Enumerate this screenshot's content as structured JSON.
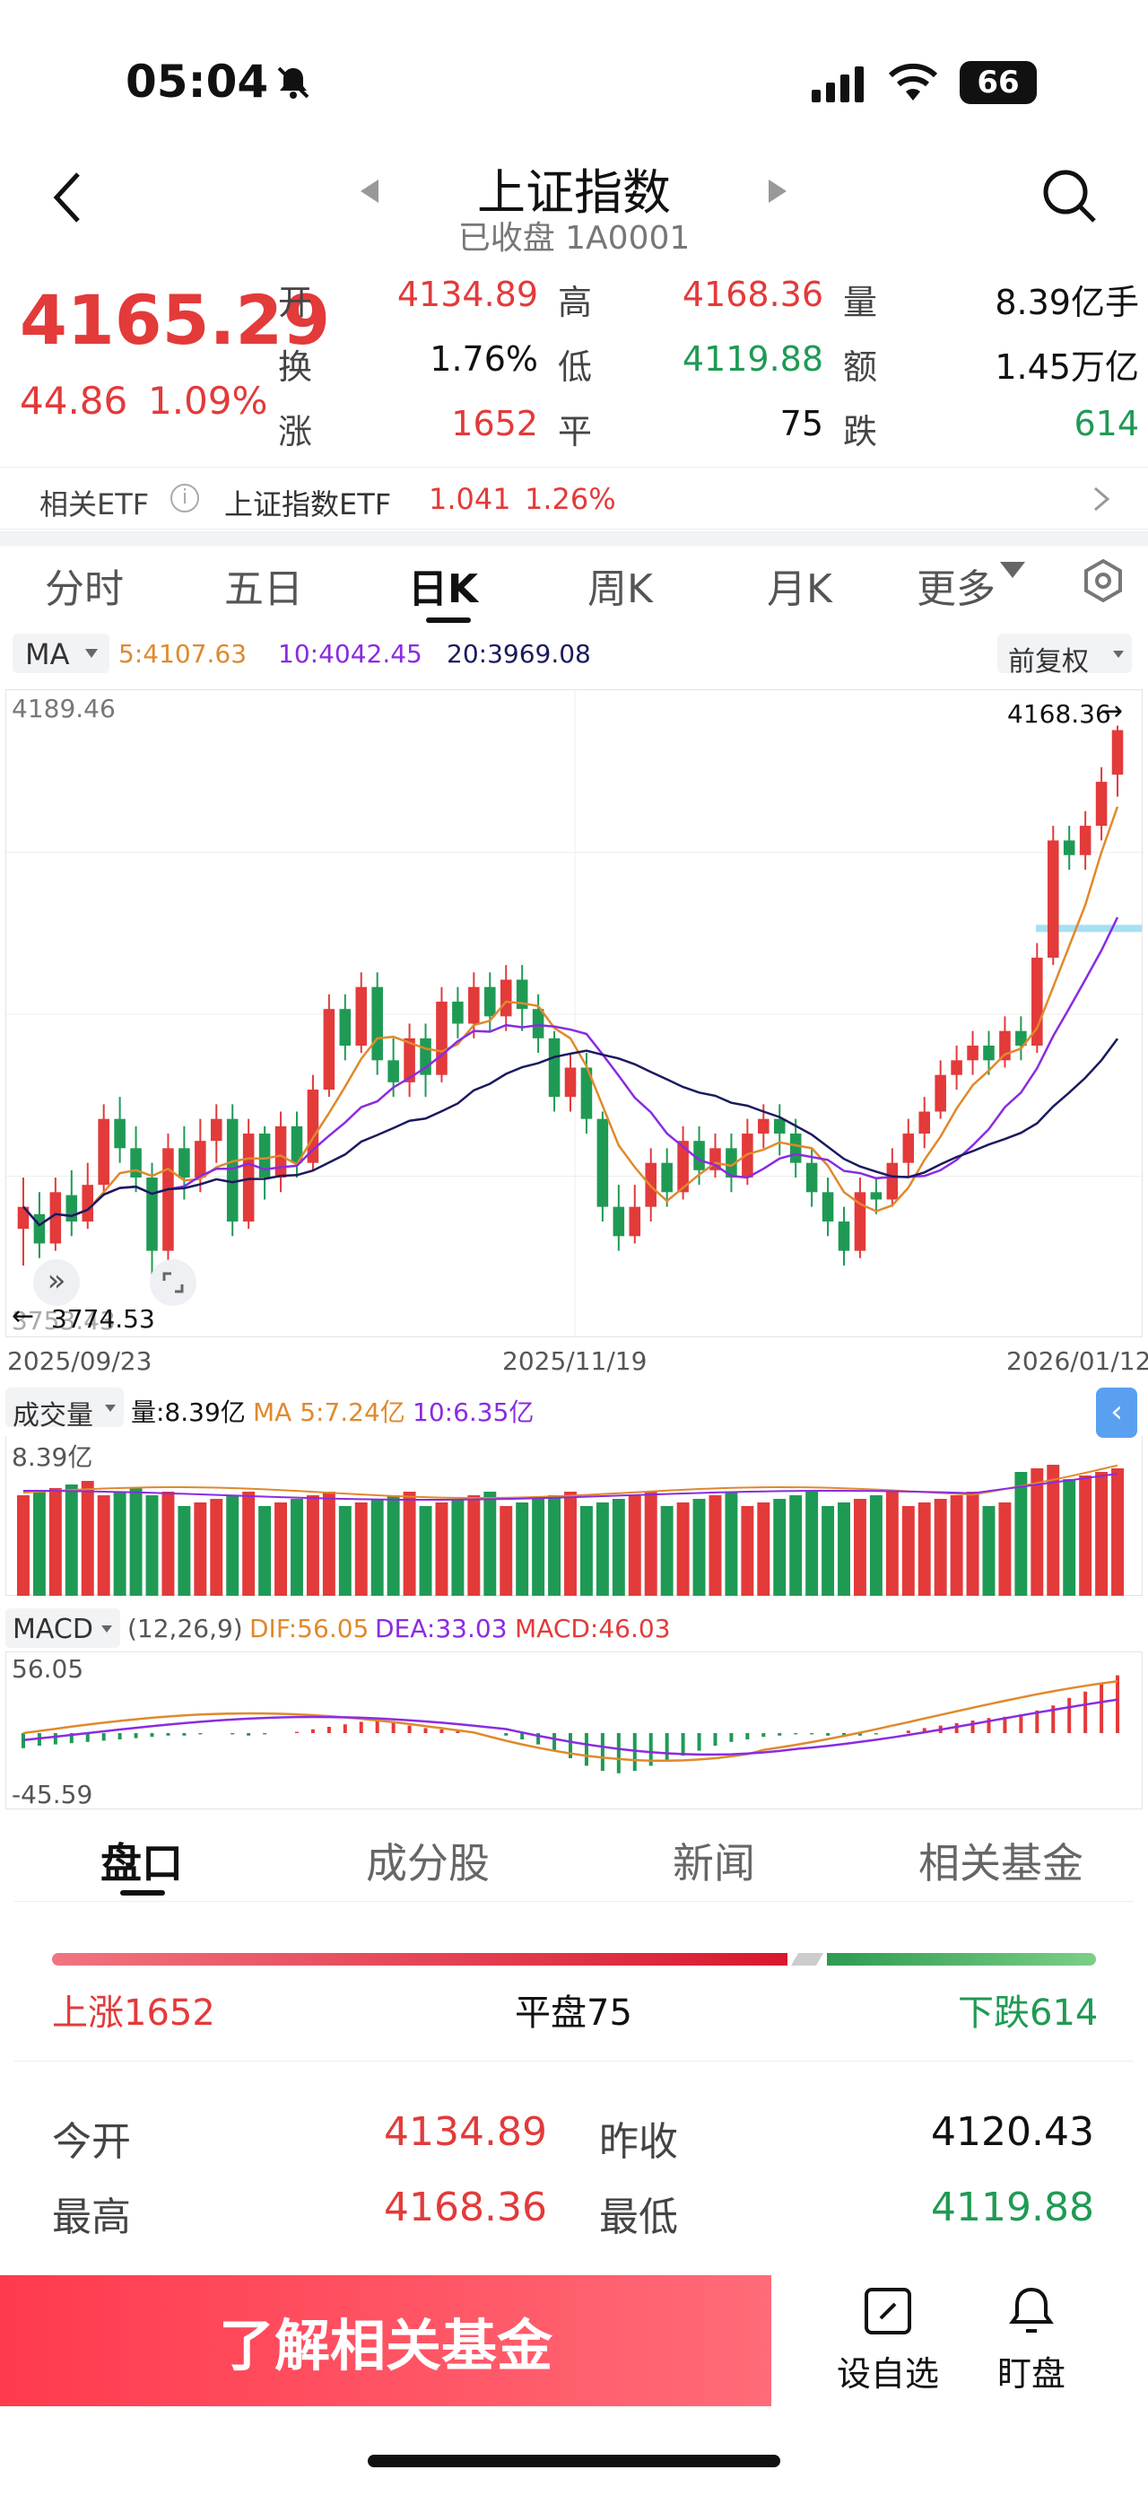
{
  "status_bar": {
    "time": "05:04",
    "battery": "66"
  },
  "nav": {
    "title": "上证指数",
    "subtitle": "已收盘 1A0001"
  },
  "quote": {
    "price": "4165.29",
    "change": "44.86",
    "change_pct": "1.09%",
    "fields": [
      {
        "label": "开",
        "value": "4134.89",
        "tone": "red"
      },
      {
        "label": "高",
        "value": "4168.36",
        "tone": "red"
      },
      {
        "label": "量",
        "value": "8.39亿手",
        "tone": "plain"
      },
      {
        "label": "换",
        "value": "1.76%",
        "tone": "plain"
      },
      {
        "label": "低",
        "value": "4119.88",
        "tone": "green"
      },
      {
        "label": "额",
        "value": "1.45万亿",
        "tone": "plain"
      },
      {
        "label": "涨",
        "value": "1652",
        "tone": "red"
      },
      {
        "label": "平",
        "value": "75",
        "tone": "plain"
      },
      {
        "label": "跌",
        "value": "614",
        "tone": "green"
      }
    ]
  },
  "etf": {
    "label": "相关ETF",
    "name": "上证指数ETF",
    "price": "1.041",
    "pct": "1.26%"
  },
  "tabs": [
    "分时",
    "五日",
    "日K",
    "周K",
    "月K",
    "更多"
  ],
  "ma_bar": {
    "selector": "MA",
    "ma5": "5:4107.63",
    "ma10": "10:4042.45",
    "ma20": "20:3969.08",
    "adjust": "前复权"
  },
  "kline": {
    "top_label": "4189.46",
    "high_label": "4168.36",
    "low_label": "3774.53",
    "bottom_label": "3753.43",
    "dates": [
      "2025/09/23",
      "2025/11/19",
      "2026/01/12"
    ]
  },
  "volume": {
    "selector": "成交量",
    "vol": "量:8.39亿",
    "ma5": "MA 5:7.24亿",
    "ma10": "10:6.35亿",
    "top_label": "8.39亿"
  },
  "macd": {
    "selector": "MACD",
    "params": "(12,26,9)",
    "dif": "DIF:56.05",
    "dea": "DEA:33.03",
    "macd": "MACD:46.03",
    "top_label": "56.05",
    "bottom_label": "-45.59"
  },
  "bottom_tabs": [
    "盘口",
    "成分股",
    "新闻",
    "相关基金"
  ],
  "breadth": {
    "up": "上涨1652",
    "flat": "平盘75",
    "down": "下跌614"
  },
  "detail_rows": [
    {
      "l1": "今开",
      "v1": "4134.89",
      "t1": "red",
      "l2": "昨收",
      "v2": "4120.43",
      "t2": "plain"
    },
    {
      "l1": "最高",
      "v1": "4168.36",
      "t1": "red",
      "l2": "最低",
      "v2": "4119.88",
      "t2": "green"
    }
  ],
  "bottom_bar": {
    "learn": "了解相关基金",
    "add_watch": "设自选",
    "watch": "盯盘"
  },
  "colors": {
    "up": "#e33a3a",
    "down": "#1f9a54",
    "ma5": "#e0892c",
    "ma10": "#8a2be2",
    "ma20": "#1a1a5e"
  },
  "kline_candles": [
    [
      3825,
      3840,
      3860,
      3800
    ],
    [
      3835,
      3815,
      3850,
      3805
    ],
    [
      3815,
      3850,
      3860,
      3810
    ],
    [
      3848,
      3830,
      3865,
      3820
    ],
    [
      3830,
      3855,
      3870,
      3825
    ],
    [
      3855,
      3900,
      3910,
      3850
    ],
    [
      3900,
      3880,
      3915,
      3870
    ],
    [
      3880,
      3860,
      3895,
      3850
    ],
    [
      3860,
      3810,
      3870,
      3790
    ],
    [
      3810,
      3880,
      3890,
      3800
    ],
    [
      3880,
      3860,
      3895,
      3845
    ],
    [
      3860,
      3885,
      3900,
      3850
    ],
    [
      3885,
      3900,
      3910,
      3870
    ],
    [
      3900,
      3830,
      3910,
      3820
    ],
    [
      3830,
      3890,
      3900,
      3825
    ],
    [
      3890,
      3860,
      3895,
      3845
    ],
    [
      3860,
      3895,
      3905,
      3850
    ],
    [
      3895,
      3870,
      3905,
      3860
    ],
    [
      3870,
      3920,
      3930,
      3865
    ],
    [
      3920,
      3975,
      3985,
      3915
    ],
    [
      3975,
      3950,
      3985,
      3940
    ],
    [
      3950,
      3990,
      4000,
      3945
    ],
    [
      3990,
      3940,
      4000,
      3930
    ],
    [
      3940,
      3925,
      3955,
      3915
    ],
    [
      3925,
      3955,
      3965,
      3915
    ],
    [
      3955,
      3930,
      3965,
      3915
    ],
    [
      3930,
      3980,
      3990,
      3925
    ],
    [
      3980,
      3965,
      3990,
      3955
    ],
    [
      3965,
      3990,
      4000,
      3955
    ],
    [
      3990,
      3970,
      4000,
      3960
    ],
    [
      3970,
      3995,
      4005,
      3960
    ],
    [
      3995,
      3975,
      4005,
      3960
    ],
    [
      3975,
      3955,
      3985,
      3945
    ],
    [
      3955,
      3915,
      3960,
      3905
    ],
    [
      3915,
      3935,
      3945,
      3905
    ],
    [
      3935,
      3900,
      3945,
      3890
    ],
    [
      3900,
      3840,
      3905,
      3830
    ],
    [
      3840,
      3820,
      3855,
      3810
    ],
    [
      3820,
      3840,
      3855,
      3815
    ],
    [
      3840,
      3870,
      3880,
      3830
    ],
    [
      3870,
      3850,
      3880,
      3840
    ],
    [
      3850,
      3885,
      3895,
      3845
    ],
    [
      3885,
      3865,
      3895,
      3855
    ],
    [
      3865,
      3880,
      3890,
      3860
    ],
    [
      3880,
      3860,
      3890,
      3850
    ],
    [
      3860,
      3890,
      3900,
      3855
    ],
    [
      3890,
      3900,
      3910,
      3880
    ],
    [
      3900,
      3890,
      3910,
      3875
    ],
    [
      3890,
      3870,
      3900,
      3860
    ],
    [
      3870,
      3850,
      3880,
      3840
    ],
    [
      3850,
      3830,
      3860,
      3820
    ],
    [
      3830,
      3810,
      3840,
      3800
    ],
    [
      3810,
      3850,
      3860,
      3805
    ],
    [
      3850,
      3845,
      3860,
      3835
    ],
    [
      3845,
      3870,
      3880,
      3840
    ],
    [
      3870,
      3890,
      3900,
      3860
    ],
    [
      3890,
      3905,
      3915,
      3880
    ],
    [
      3905,
      3930,
      3940,
      3900
    ],
    [
      3930,
      3940,
      3950,
      3920
    ],
    [
      3940,
      3950,
      3960,
      3930
    ],
    [
      3950,
      3940,
      3960,
      3930
    ],
    [
      3940,
      3960,
      3970,
      3935
    ],
    [
      3960,
      3950,
      3970,
      3940
    ],
    [
      3950,
      4010,
      4020,
      3945
    ],
    [
      4010,
      4090,
      4100,
      4005
    ],
    [
      4090,
      4080,
      4100,
      4070
    ],
    [
      4080,
      4100,
      4110,
      4070
    ],
    [
      4100,
      4130,
      4140,
      4090
    ],
    [
      4134.89,
      4165.29,
      4168.36,
      4119.88
    ]
  ],
  "macd_bars": [
    -12,
    -10,
    -9,
    -8,
    -7,
    -6,
    -5,
    -4,
    -3,
    -2,
    -2,
    -1,
    0,
    -1,
    -2,
    -1,
    0,
    1,
    3,
    5,
    7,
    9,
    10,
    8,
    6,
    4,
    3,
    2,
    1,
    0,
    -2,
    -5,
    -9,
    -14,
    -20,
    -26,
    -30,
    -32,
    -30,
    -26,
    -22,
    -18,
    -14,
    -10,
    -7,
    -5,
    -3,
    -2,
    -1,
    -1,
    -2,
    -3,
    -2,
    -1,
    0,
    2,
    4,
    6,
    8,
    10,
    12,
    13,
    15,
    18,
    22,
    28,
    33,
    40,
    46
  ]
}
